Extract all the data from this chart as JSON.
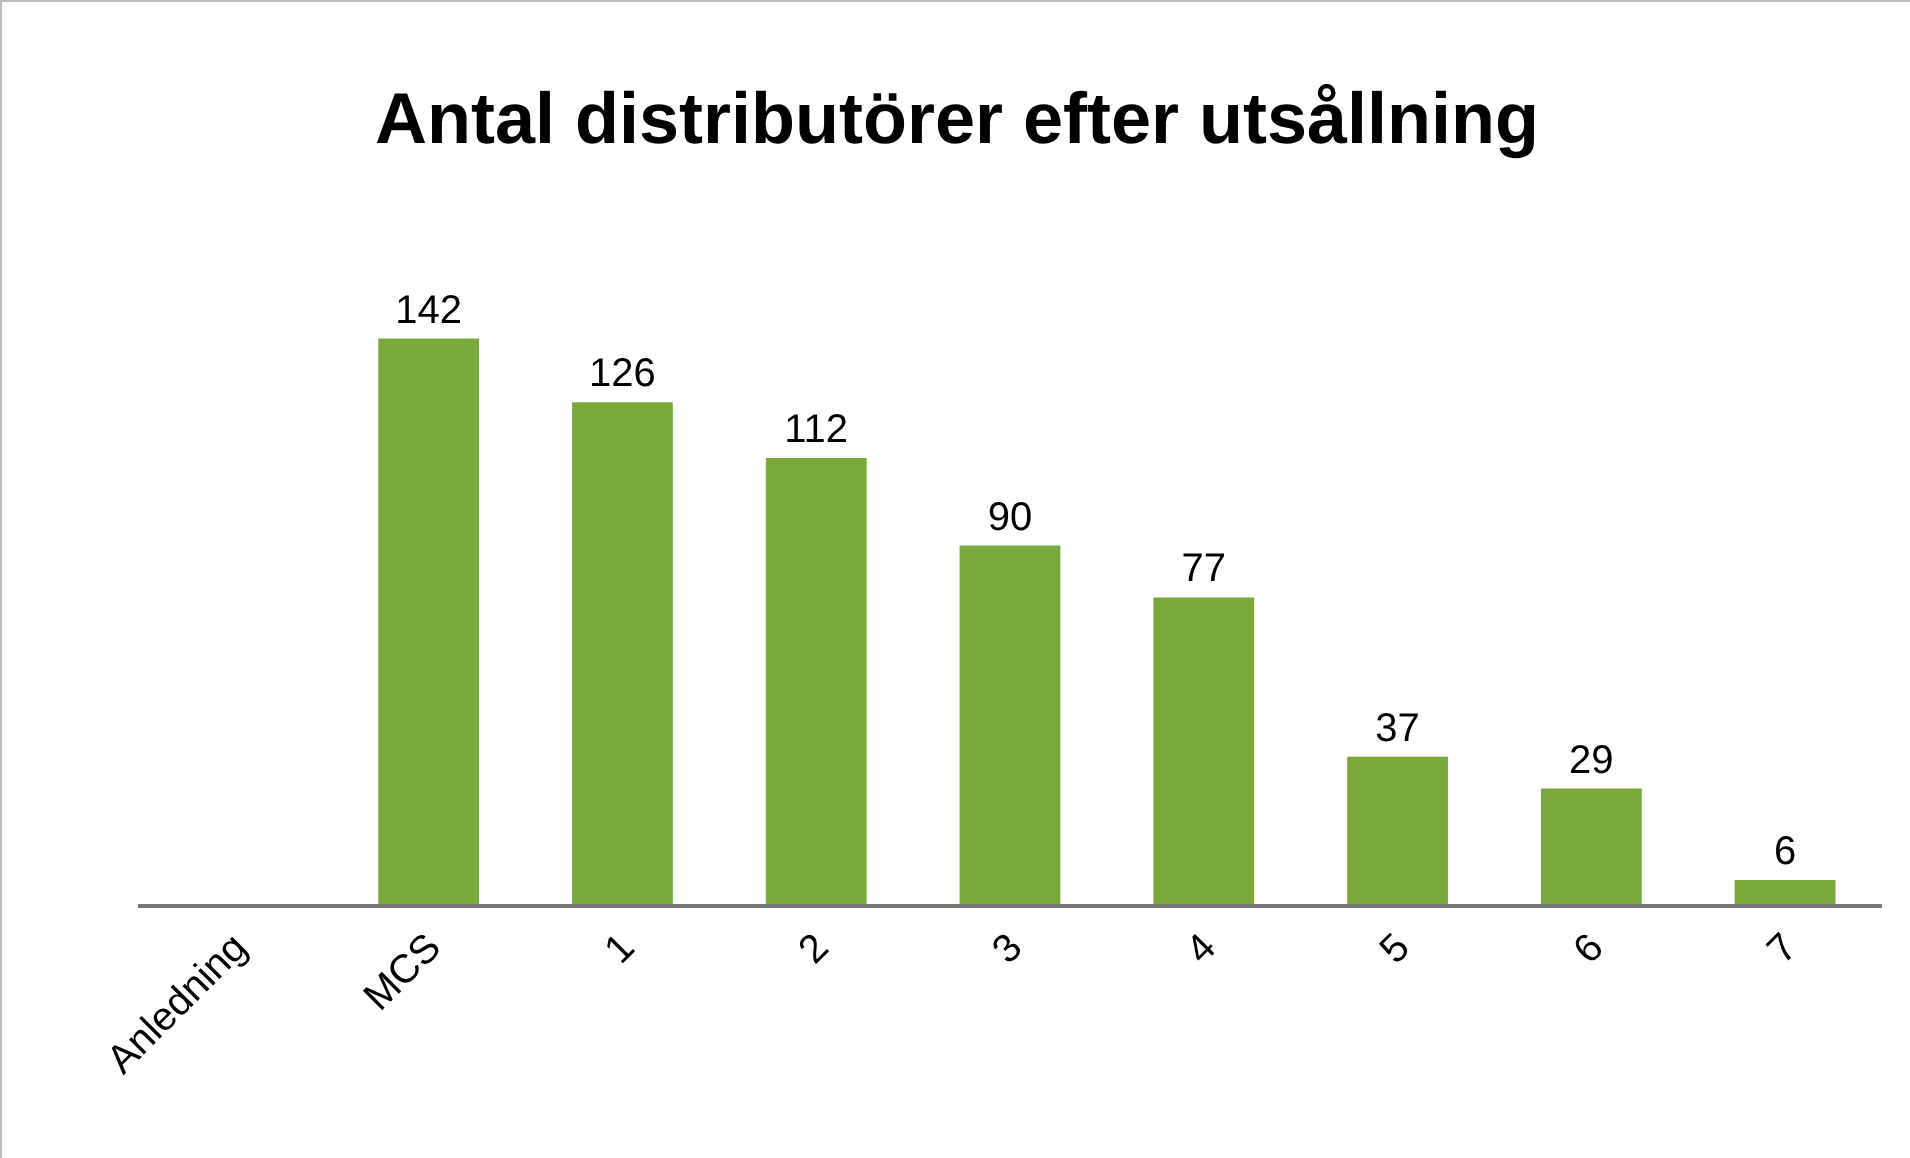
{
  "chart_data": {
    "type": "bar",
    "title": "Antal distributörer efter utsållning",
    "categories": [
      "Anledning",
      "MCS",
      "1",
      "2",
      "3",
      "4",
      "5",
      "6",
      "7"
    ],
    "values": [
      null,
      142,
      126,
      112,
      90,
      77,
      37,
      29,
      6
    ],
    "color": "#7aa83a",
    "data_labels": true,
    "grid": false,
    "legend": false
  }
}
